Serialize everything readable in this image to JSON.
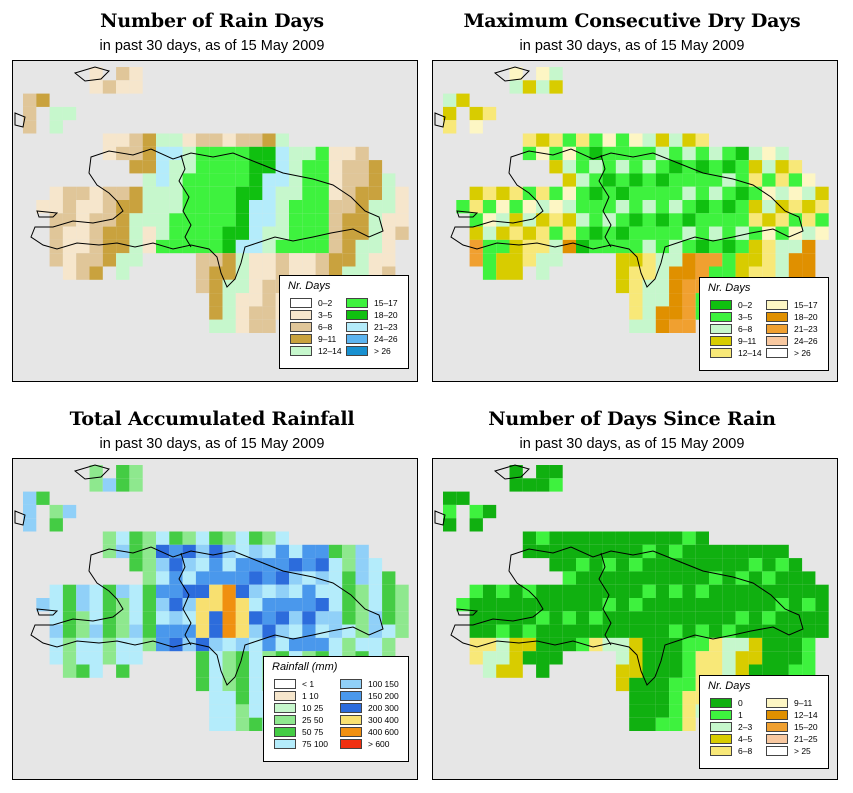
{
  "colors": {
    "map_background": "#e6e6e6",
    "border": "#000000"
  },
  "maps": [
    {
      "title": "Number of Rain Days",
      "subtitle": "in past 30 days, as of  15 May 2009",
      "legend": {
        "title": "Nr. Days",
        "columns": [
          [
            {
              "label": "0–2",
              "color": "#ffffff"
            },
            {
              "label": "3–5",
              "color": "#f6e6cc"
            },
            {
              "label": "6–8",
              "color": "#e0c699"
            },
            {
              "label": "9–11",
              "color": "#c9a23e"
            },
            {
              "label": "12–14",
              "color": "#c6f7cc"
            }
          ],
          [
            {
              "label": "15–17",
              "color": "#3ef23e"
            },
            {
              "label": "18–20",
              "color": "#10c010"
            },
            {
              "label": "21–23",
              "color": "#b4ecfb"
            },
            {
              "label": "24–26",
              "color": "#5cb4f0"
            },
            {
              "label": "> 26",
              "color": "#1890d0"
            }
          ]
        ]
      }
    },
    {
      "title": "Maximum Consecutive Dry Days",
      "subtitle": "in past 30 days, as of  15 May 2009",
      "legend": {
        "title": "Nr. Days",
        "columns": [
          [
            {
              "label": "0–2",
              "color": "#10c010"
            },
            {
              "label": "3–5",
              "color": "#3ef23e"
            },
            {
              "label": "6–8",
              "color": "#c6f7cc"
            },
            {
              "label": "9–11",
              "color": "#d8cc00"
            },
            {
              "label": "12–14",
              "color": "#f8e878"
            }
          ],
          [
            {
              "label": "15–17",
              "color": "#fdf6c4"
            },
            {
              "label": "18–20",
              "color": "#e09000"
            },
            {
              "label": "21–23",
              "color": "#f0a030"
            },
            {
              "label": "24–26",
              "color": "#f8c8a0"
            },
            {
              "label": "> 26",
              "color": "#ffffff"
            }
          ]
        ]
      }
    },
    {
      "title": "Total Accumulated Rainfall",
      "subtitle": "in past 30 days, as of  15 May 2009",
      "legend": {
        "title": "Rainfall (mm)",
        "columns": [
          [
            {
              "label": "< 1",
              "color": "#ffffff"
            },
            {
              "label": "1    10",
              "color": "#f6e6cc"
            },
            {
              "label": "10    25",
              "color": "#c6f7cc"
            },
            {
              "label": "25    50",
              "color": "#8ee88e"
            },
            {
              "label": "50    75",
              "color": "#44cc44"
            },
            {
              "label": "75  100",
              "color": "#b4ecfb"
            }
          ],
          [
            {
              "label": "100  150",
              "color": "#90d0f8"
            },
            {
              "label": "150  200",
              "color": "#4a98ec"
            },
            {
              "label": "200  300",
              "color": "#2c6cdc"
            },
            {
              "label": "300  400",
              "color": "#f8e070"
            },
            {
              "label": "400  600",
              "color": "#f09010"
            },
            {
              "label": "> 600",
              "color": "#f03010"
            }
          ]
        ]
      }
    },
    {
      "title": "Number of Days Since Rain",
      "subtitle": "in past 30 days, as of  15 May 2009",
      "legend": {
        "title": "Nr. Days",
        "columns": [
          [
            {
              "label": "0",
              "color": "#10b010"
            },
            {
              "label": "1",
              "color": "#3ef23e"
            },
            {
              "label": "2–3",
              "color": "#c6f7cc"
            },
            {
              "label": "4–5",
              "color": "#d8cc00"
            },
            {
              "label": "6–8",
              "color": "#f8e878"
            }
          ],
          [
            {
              "label": "9–11",
              "color": "#fdf6c4"
            },
            {
              "label": "12–14",
              "color": "#e09000"
            },
            {
              "label": "15–20",
              "color": "#f0a030"
            },
            {
              "label": "21–25",
              "color": "#f8c8a0"
            },
            {
              "label": "> 25",
              "color": "#ffffff"
            }
          ]
        ]
      }
    }
  ]
}
